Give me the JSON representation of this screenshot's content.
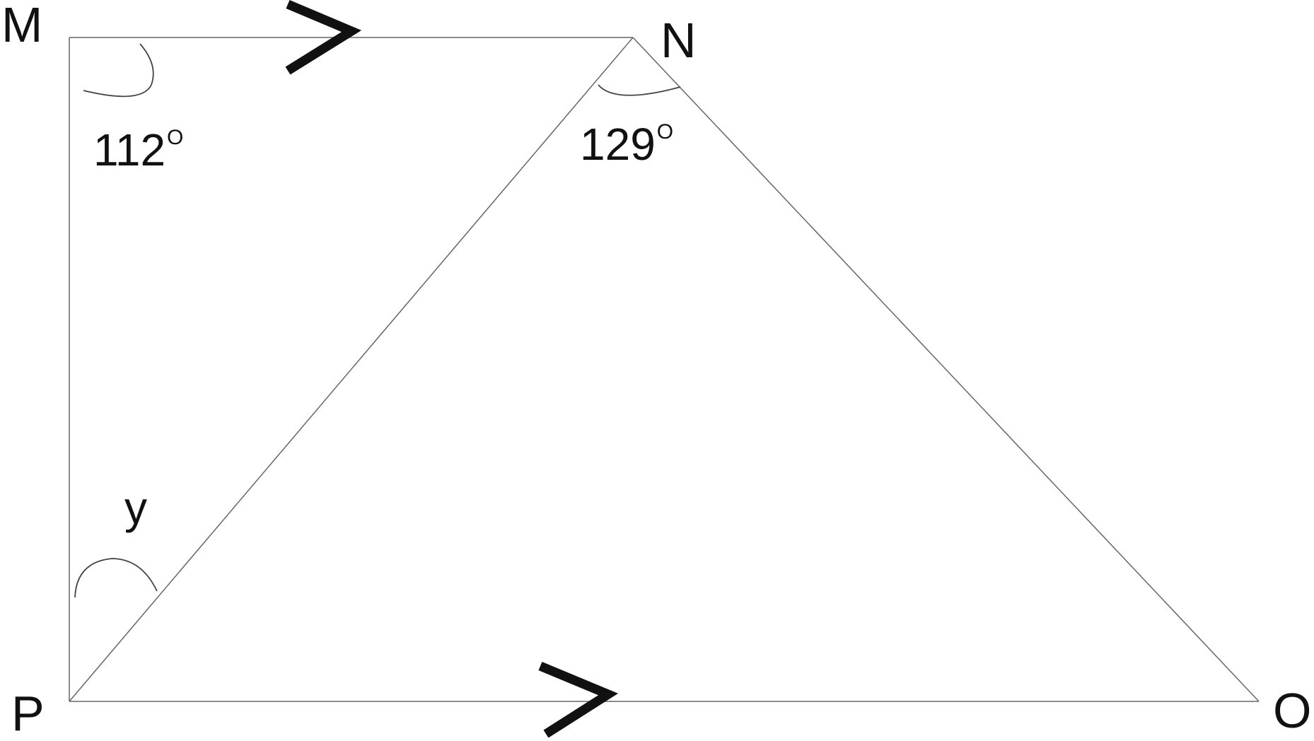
{
  "vertices": {
    "M": "M",
    "N": "N",
    "O": "O",
    "P": "P"
  },
  "angles": {
    "M": {
      "value": "112",
      "degree_mark": "O"
    },
    "N": {
      "value": "129",
      "degree_mark": "O"
    },
    "P": {
      "value": "y"
    }
  },
  "colors": {
    "line": "#555555",
    "arrow": "#111111",
    "text": "#111111"
  }
}
